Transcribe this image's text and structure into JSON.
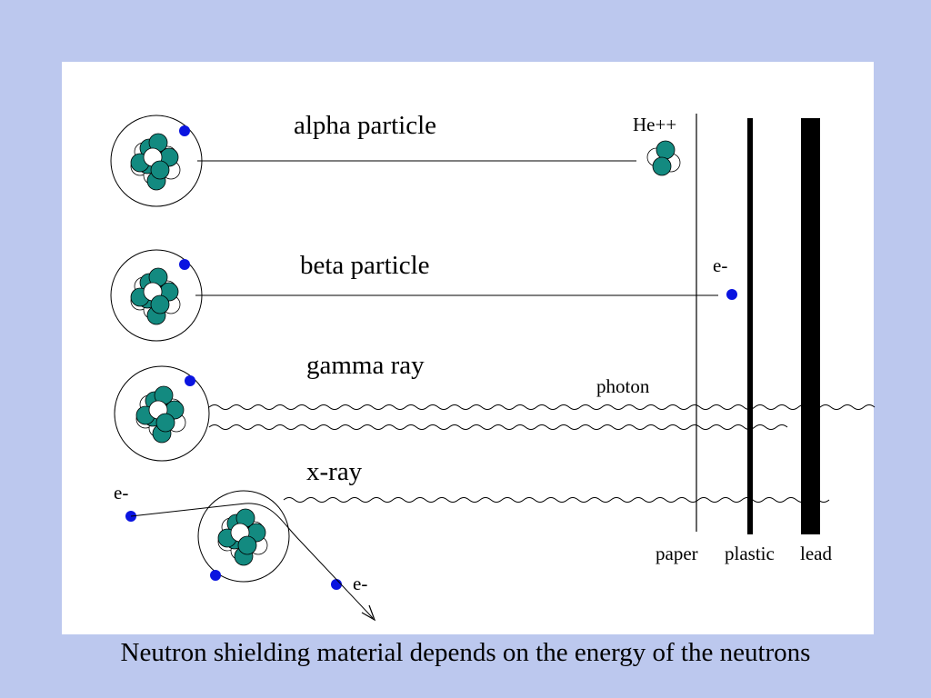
{
  "labels": {
    "alpha": "alpha particle",
    "beta": "beta particle",
    "gamma": "gamma ray",
    "xray": "x-ray",
    "he": "He++",
    "e_beta": "e-",
    "photon": "photon",
    "e_in": "e-",
    "e_out": "e-",
    "paper": "paper",
    "plastic": "plastic",
    "lead": "lead"
  },
  "caption": "Neutron shielding material depends on the energy of the neutrons",
  "colors": {
    "background": "#bcc8ee",
    "proton": "#138a80",
    "electron": "#0a14e0",
    "neutron": "#ffffff"
  }
}
